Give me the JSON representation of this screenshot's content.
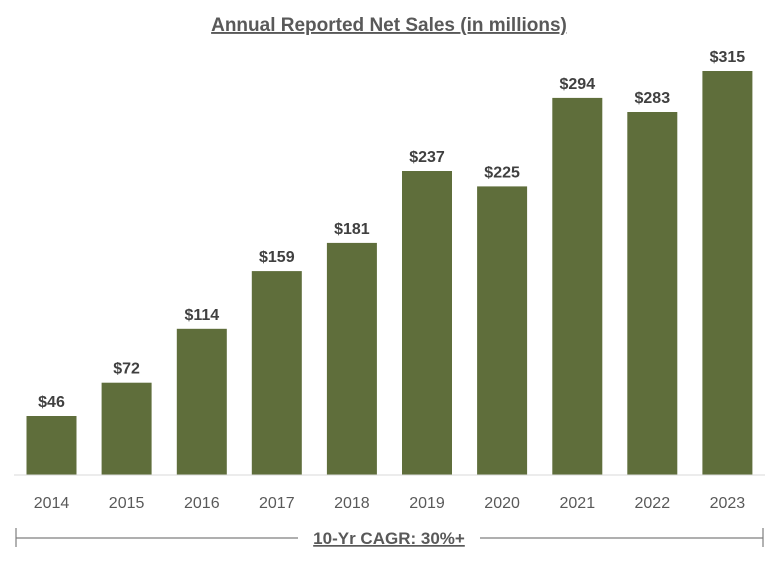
{
  "chart_data": {
    "type": "bar",
    "title": "Annual Reported Net Sales (in millions)",
    "categories": [
      "2014",
      "2015",
      "2016",
      "2017",
      "2018",
      "2019",
      "2020",
      "2021",
      "2022",
      "2023"
    ],
    "values": [
      46,
      72,
      114,
      159,
      181,
      237,
      225,
      294,
      283,
      315
    ],
    "value_labels": [
      "$46",
      "$72",
      "$114",
      "$159",
      "$181",
      "$237",
      "$225",
      "$294",
      "$283",
      "$315"
    ],
    "xlabel": "",
    "ylabel": "",
    "ylim": [
      0,
      330
    ],
    "grid": false,
    "legend": "none",
    "bar_color": "#5f6e3b",
    "annotation": "10-Yr CAGR: 30%+"
  }
}
